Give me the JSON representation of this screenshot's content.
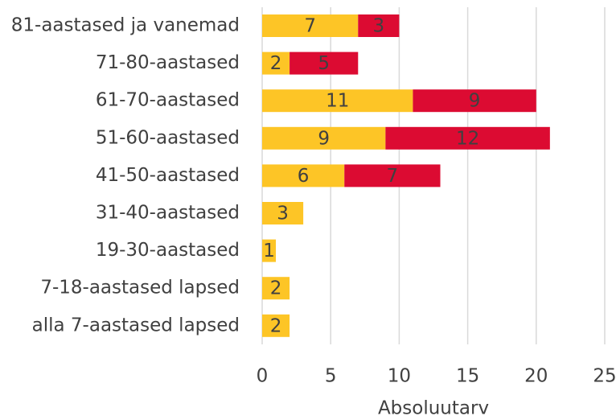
{
  "chart_data": {
    "type": "stacked_barh",
    "categories": [
      "81-aastased ja vanemad",
      "71-80-aastased",
      "61-70-aastased",
      "51-60-aastased",
      "41-50-aastased",
      "31-40-aastased",
      "19-30-aastased",
      "7-18-aastased lapsed",
      "alla 7-aastased lapsed"
    ],
    "series": [
      {
        "color": "#fdc526",
        "values": [
          7,
          2,
          11,
          9,
          6,
          3,
          1,
          2,
          2
        ]
      },
      {
        "color": "#dc0b32",
        "values": [
          3,
          5,
          9,
          12,
          7,
          null,
          null,
          null,
          null
        ]
      }
    ],
    "xlabel": "Absoluutarv",
    "xlim": [
      0,
      25
    ],
    "xticks": [
      0,
      5,
      10,
      15,
      20,
      25
    ],
    "grid": true
  }
}
